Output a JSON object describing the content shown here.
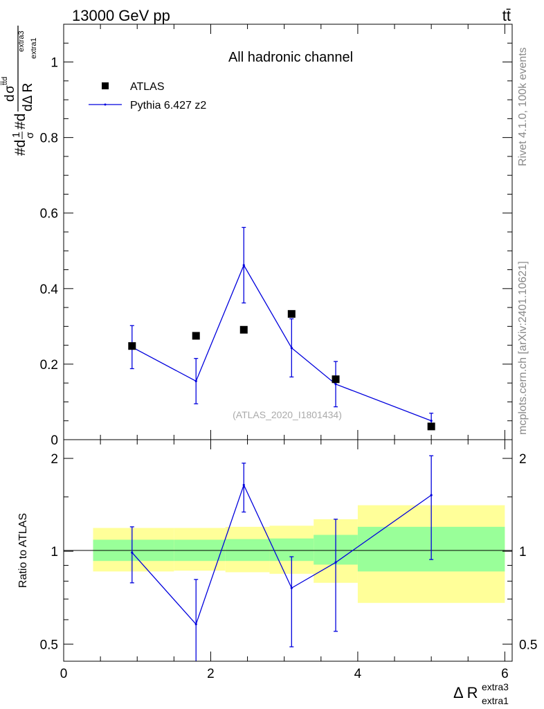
{
  "header": {
    "energy_label": "13000 GeV pp",
    "process_label": "tt̄"
  },
  "side_labels": {
    "rivet": "Rivet 4.1.0,  100k events",
    "site": "mcplots.cern.ch [arXiv:2401.10621]"
  },
  "chart_data": [
    {
      "type": "scatter",
      "panel": "main",
      "title": "All hadronic channel",
      "watermark": "(ATLAS_2020_I1801434)",
      "ylabel_parts": {
        "hash1": "#d",
        "one": "1",
        "sigma": "σ",
        "hash2": "#d",
        "d": "d",
        "delta": "dΔ R",
        "sub": "extra1",
        "sup": "extra3",
        "sigma_tt": "σ",
        "tt": "t̄t̄d"
      },
      "ylim": [
        0,
        1.1
      ],
      "yticks": [
        0,
        0.2,
        0.4,
        0.6,
        0.8,
        1
      ],
      "ytick_labels": [
        "0",
        "0.2",
        "0.4",
        "0.6",
        "0.8",
        "1"
      ],
      "legend": {
        "atlas": "ATLAS",
        "mc": "Pythia 6.427 z2"
      },
      "atlas": {
        "x": [
          0.93,
          1.8,
          2.45,
          3.1,
          3.7,
          5.0
        ],
        "y": [
          0.248,
          0.275,
          0.291,
          0.333,
          0.16,
          0.035
        ]
      },
      "mc": {
        "x": [
          0.93,
          1.8,
          2.45,
          3.1,
          3.7,
          5.0
        ],
        "y": [
          0.245,
          0.155,
          0.462,
          0.243,
          0.147,
          0.05
        ],
        "err_lo": [
          0.057,
          0.06,
          0.1,
          0.077,
          0.06,
          0.02
        ],
        "err_hi": [
          0.057,
          0.06,
          0.1,
          0.077,
          0.06,
          0.02
        ]
      }
    },
    {
      "type": "line",
      "panel": "ratio",
      "ylabel": "Ratio to ATLAS",
      "ylim": [
        0.44,
        2.3
      ],
      "yticks": [
        0.5,
        1,
        2
      ],
      "ytick_labels": [
        "0.5",
        "1",
        "2"
      ],
      "xlim": [
        0,
        6.1
      ],
      "xticks": [
        0,
        2,
        4,
        6
      ],
      "xtick_labels": [
        "0",
        "2",
        "4",
        "6"
      ],
      "xlabel_parts": {
        "main": "Δ R",
        "sup": "extra3",
        "sub": "extra1"
      },
      "bands": [
        {
          "x0": 0.4,
          "x1": 1.5,
          "y_lo": 0.86,
          "y_hi": 1.19,
          "g_lo": 0.93,
          "g_hi": 1.09
        },
        {
          "x0": 1.5,
          "x1": 2.2,
          "y_lo": 0.865,
          "y_hi": 1.19,
          "g_lo": 0.93,
          "g_hi": 1.09
        },
        {
          "x0": 2.2,
          "x1": 2.8,
          "y_lo": 0.855,
          "y_hi": 1.2,
          "g_lo": 0.93,
          "g_hi": 1.095
        },
        {
          "x0": 2.8,
          "x1": 3.4,
          "y_lo": 0.845,
          "y_hi": 1.21,
          "g_lo": 0.93,
          "g_hi": 1.1
        },
        {
          "x0": 3.4,
          "x1": 4.0,
          "y_lo": 0.79,
          "y_hi": 1.27,
          "g_lo": 0.905,
          "g_hi": 1.13
        },
        {
          "x0": 4.0,
          "x1": 6.0,
          "y_lo": 0.68,
          "y_hi": 1.41,
          "g_lo": 0.86,
          "g_hi": 1.2
        }
      ],
      "mc": {
        "x": [
          0.93,
          1.8,
          2.45,
          3.1,
          3.7,
          5.0
        ],
        "y": [
          0.99,
          0.58,
          1.64,
          0.76,
          0.92,
          1.52
        ],
        "err_lo": [
          0.2,
          0.24,
          0.3,
          0.27,
          0.37,
          0.58
        ],
        "err_hi": [
          0.21,
          0.23,
          0.29,
          0.2,
          0.35,
          0.52
        ]
      }
    }
  ]
}
